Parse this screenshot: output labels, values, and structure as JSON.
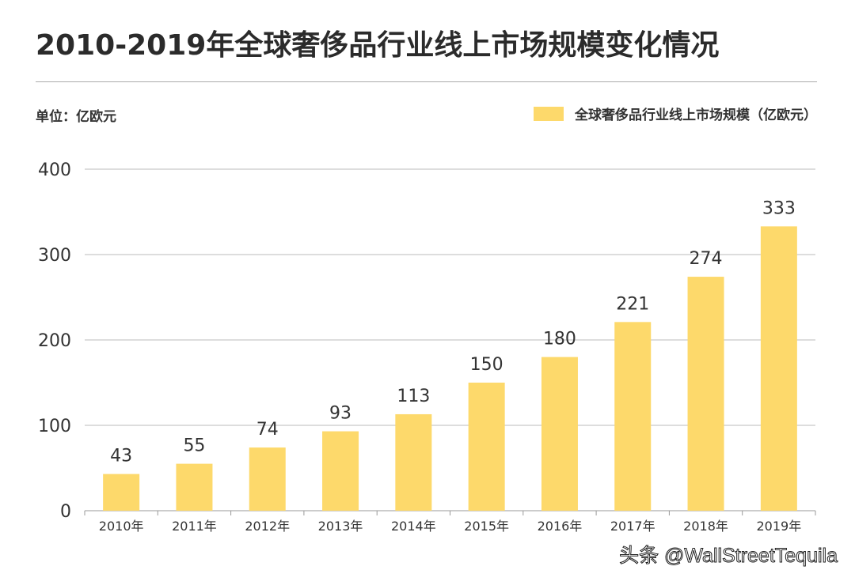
{
  "title": "2010-2019年全球奢侈品行业线上市场规模变化情况",
  "unit_label": "单位：亿欧元",
  "watermark": "头条 @WallStreetTequila",
  "chart_data": {
    "type": "bar",
    "title": "2010-2019年全球奢侈品行业线上市场规模变化情况",
    "categories": [
      "2010年",
      "2011年",
      "2012年",
      "2013年",
      "2014年",
      "2015年",
      "2016年",
      "2017年",
      "2018年",
      "2019年"
    ],
    "series": [
      {
        "name": "全球奢侈品行业线上市场规模（亿欧元）",
        "values": [
          43,
          55,
          74,
          93,
          113,
          150,
          180,
          221,
          274,
          333
        ]
      }
    ],
    "ylim": [
      0,
      400
    ],
    "yticks": [
      0,
      100,
      200,
      300,
      400
    ],
    "grid": true,
    "legend": "top-right",
    "color": "#fdd96b"
  }
}
